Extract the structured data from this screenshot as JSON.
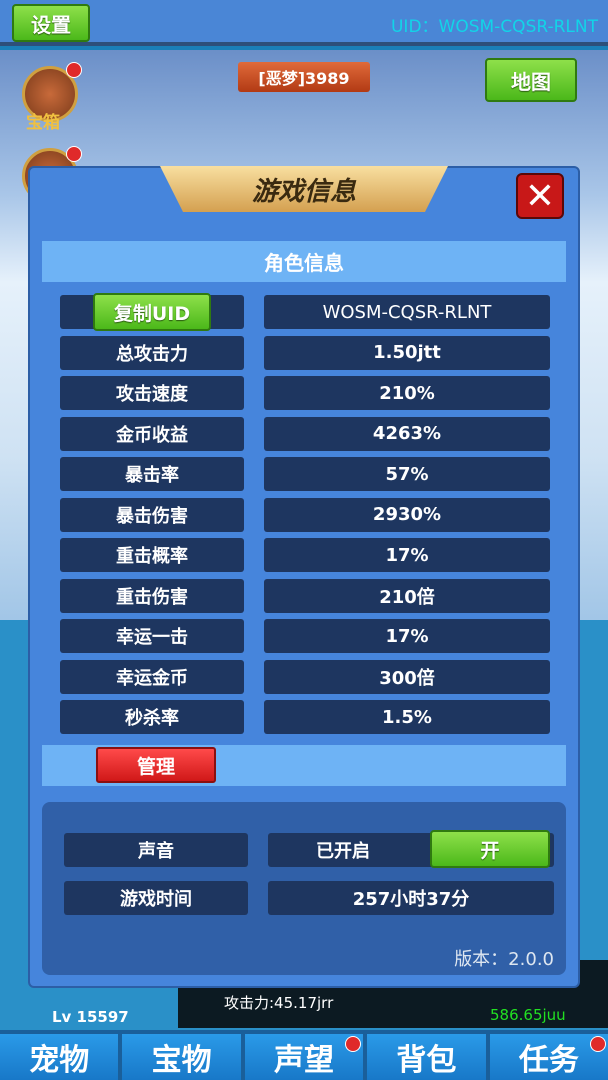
{
  "header": {
    "settings_label": "设置",
    "uid_text": "UID：WOSM-CQSR-RLNT"
  },
  "scene": {
    "stage_label": "[恶梦]3989",
    "map_label": "地图",
    "chest_label": "宝箱"
  },
  "dialog": {
    "title": "游戏信息",
    "section_title": "角色信息",
    "copy_uid_label": "复制UID",
    "rows": [
      {
        "label": "",
        "value": "WOSM-CQSR-RLNT"
      },
      {
        "label": "总攻击力",
        "value": "1.50jtt"
      },
      {
        "label": "攻击速度",
        "value": "210%"
      },
      {
        "label": "金币收益",
        "value": "4263%"
      },
      {
        "label": "暴击率",
        "value": "57%"
      },
      {
        "label": "暴击伤害",
        "value": "2930%"
      },
      {
        "label": "重击概率",
        "value": "17%"
      },
      {
        "label": "重击伤害",
        "value": "210倍"
      },
      {
        "label": "幸运一击",
        "value": "17%"
      },
      {
        "label": "幸运金币",
        "value": "300倍"
      },
      {
        "label": "秒杀率",
        "value": "1.5%"
      }
    ],
    "manage_label": "管理",
    "sound_label": "声音",
    "sound_status": "已开启",
    "sound_toggle": "开",
    "playtime_label": "游戏时间",
    "playtime_value": "257小时37分",
    "version": "版本：2.0.0"
  },
  "background": {
    "level": "Lv 15597",
    "attack": "攻击力:45.17jrr",
    "gold": "586.65juu"
  },
  "tabs": [
    {
      "label": "宠物",
      "badge": false
    },
    {
      "label": "宝物",
      "badge": false
    },
    {
      "label": "声望",
      "badge": true
    },
    {
      "label": "背包",
      "badge": false
    },
    {
      "label": "任务",
      "badge": true
    }
  ]
}
